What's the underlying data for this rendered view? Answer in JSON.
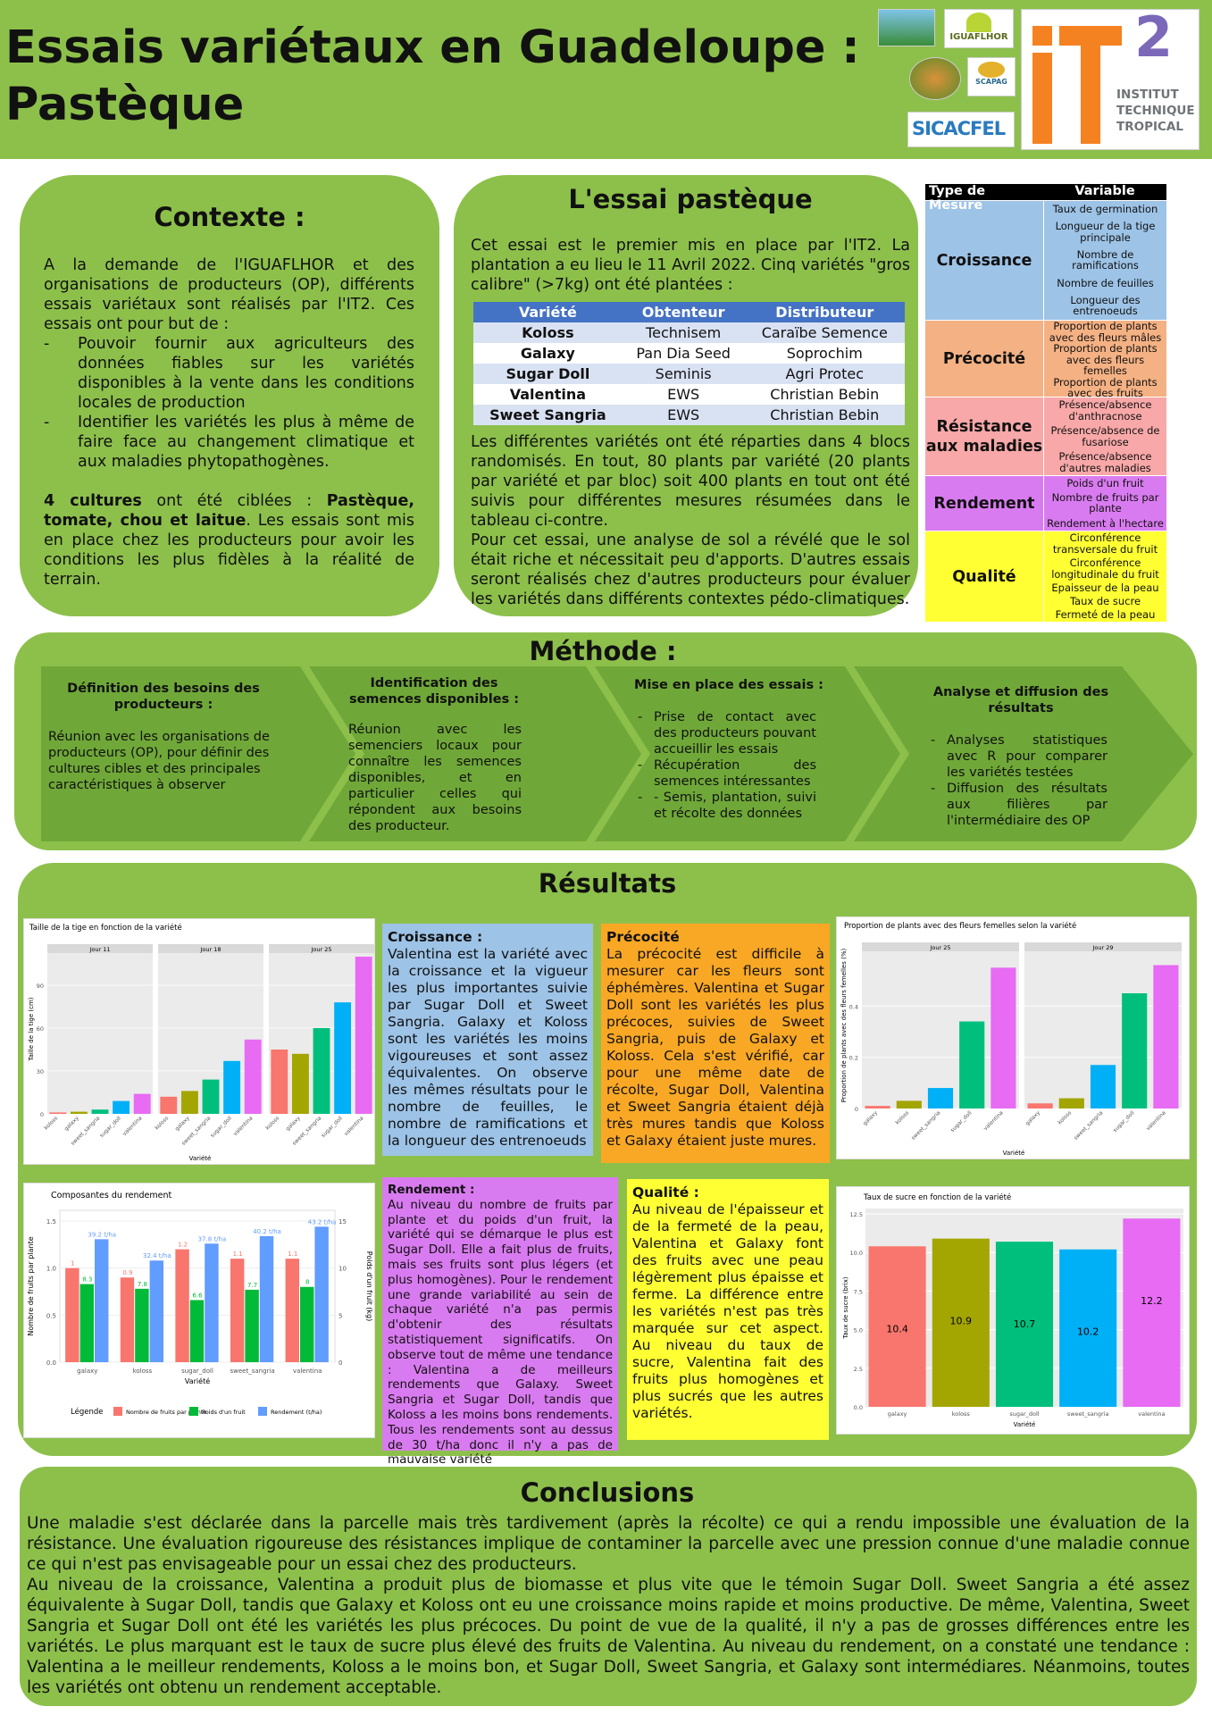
{
  "header": {
    "title_line1": "Essais variétaux en Guadeloupe :",
    "title_line2": "Pastèque",
    "logos": {
      "it2_number": "2",
      "it2_name_l1": "INSTITUT",
      "it2_name_l2": "TECHNIQUE",
      "it2_name_l3": "TROPICAL",
      "iguaflhor": "IGUAFLHOR",
      "scapag": "SCAPAG",
      "sicacfel": "SICACFEL"
    }
  },
  "contexte": {
    "title": "Contexte :",
    "p1": "A la demande de l'IGUAFLHOR et des organisations de producteurs (OP), différents essais variétaux sont réalisés par l'IT2. Ces essais ont pour but de :",
    "bullets": [
      "Pouvoir fournir aux agriculteurs des données fiables sur les variétés disponibles à la vente dans les conditions locales de production",
      "Identifier les variétés les plus à même de faire face au changement climatique et aux maladies phytopathogènes."
    ],
    "p2_bold": "4 cultures",
    "p2_mid": " ont été ciblées : ",
    "p2_bold2": "Pastèque, tomate, chou et laitue",
    "p2_end": ". Les essais sont mis en place chez les producteurs pour avoir les conditions les plus fidèles à la réalité de terrain."
  },
  "essai": {
    "title": "L'essai pastèque",
    "p1": "Cet essai est le premier mis en place par l'IT2. La plantation a eu lieu le 11 Avril 2022. Cinq variétés \"gros calibre\" (>7kg) ont été plantées :",
    "table_headers": [
      "Variété",
      "Obtenteur",
      "Distributeur"
    ],
    "rows": [
      [
        "Koloss",
        "Technisem",
        "Caraïbe Semence"
      ],
      [
        "Galaxy",
        "Pan Dia Seed",
        "Soprochim"
      ],
      [
        "Sugar Doll",
        "Seminis",
        "Agri Protec"
      ],
      [
        "Valentina",
        "EWS",
        "Christian Bebin"
      ],
      [
        "Sweet Sangria",
        "EWS",
        "Christian Bebin"
      ]
    ],
    "p2": "Les différentes variétés ont été réparties dans 4 blocs randomisés. En tout, 80 plants par variété (20 plants par variété et par bloc) soit 400 plants en tout ont été suivis pour différentes mesures résumées dans le tableau ci-contre.",
    "p3": "Pour cet essai, une analyse de sol a révélé que le sol était riche et nécessitait peu d'apports. D'autres essais seront réalisés chez d'autres producteurs pour évaluer les variétés dans différents contextes pédo-climatiques."
  },
  "mesures": {
    "headers": [
      "Type de Mesure",
      "Variable"
    ],
    "groups": [
      {
        "type": "Croissance",
        "color": "#9dc3e6",
        "vars": [
          "Taux de germination",
          "Longueur de la tige principale",
          "Nombre de ramifications",
          "Nombre de feuilles",
          "Longueur des entrenoeuds"
        ]
      },
      {
        "type": "Précocité",
        "color": "#f4b183",
        "vars": [
          "Proportion de plants avec des fleurs mâles",
          "Proportion de plants avec des fleurs femelles",
          "Proportion de plants avec des fruits"
        ]
      },
      {
        "type": "Résistance aux maladies",
        "color": "#f8a8a8",
        "vars": [
          "Présence/absence d'anthracnose",
          "Présence/absence de fusariose",
          "Présence/absence d'autres maladies"
        ]
      },
      {
        "type": "Rendement",
        "color": "#d97bf0",
        "vars": [
          "Poids d'un fruit",
          "Nombre de fruits par plante",
          "Rendement à l'hectare"
        ]
      },
      {
        "type": "Qualité",
        "color": "#ffff33",
        "vars": [
          "Circonférence transversale du fruit",
          "Circonférence longitudinale du fruit",
          "Epaisseur de la peau",
          "Taux de sucre",
          "Fermeté de la peau"
        ]
      }
    ]
  },
  "methode": {
    "title": "Méthode :",
    "steps": [
      {
        "title": "Définition des besoins des producteurs :",
        "text": "Réunion avec les organisations de producteurs (OP), pour définir des cultures cibles et des principales caractéristiques à observer"
      },
      {
        "title": "Identification des semences disponibles :",
        "text": "Réunion avec les semenciers locaux pour connaître les semences disponibles, et en particulier celles qui répondent aux besoins des producteur."
      },
      {
        "title": "Mise en place des essais :",
        "items": [
          "Prise de contact avec des producteurs pouvant accueillir les essais",
          "Récupération des semences intéressantes",
          "- Semis, plantation, suivi et récolte des données"
        ]
      },
      {
        "title": "Analyse et diffusion des résultats",
        "items": [
          "Analyses statistiques avec R pour comparer les variétés testées",
          "Diffusion des résultats aux filières par l'intermédiaire des OP"
        ]
      }
    ]
  },
  "resultats": {
    "title": "Résultats",
    "croissance": {
      "title": "Croissance :",
      "text": "Valentina est la variété avec la croissance et la vigueur les plus importantes suivie par Sugar Doll et Sweet Sangria. Galaxy et Koloss sont les variétés les moins vigoureuses et sont assez équivalentes. On observe les mêmes résultats pour le nombre de feuilles, le nombre de ramifications et la longueur des entrenoeuds"
    },
    "precocite": {
      "title": "Précocité",
      "text": "La précocité est difficile à mesurer car les fleurs sont éphémères. Valentina et Sugar Doll sont les variétés les plus précoces, suivies de Sweet Sangria, puis de Galaxy et Koloss. Cela s'est vérifié, car pour une même date de récolte, Sugar Doll, Valentina et Sweet Sangria étaient déjà très mures tandis que Koloss et Galaxy étaient juste mures."
    },
    "rendement": {
      "title": "Rendement :",
      "text": "Au niveau du nombre de fruits par plante et du poids d'un fruit, la variété qui se démarque le plus est Sugar Doll. Elle a fait plus de fruits, mais ses fruits sont plus légers (et plus homogènes). Pour le rendement une grande variabilité au sein de chaque variété n'a pas permis d'obtenir des résultats statistiquement significatifs. On observe tout de même une tendance : Valentina a de meilleurs rendements que Galaxy. Sweet Sangria et Sugar Doll, tandis que Koloss a les moins bons rendements. Tous les rendements sont au dessus de 30 t/ha donc il n'y a pas de mauvaise variété"
    },
    "qualite": {
      "title": "Qualité :",
      "text": "Au niveau de l'épaisseur et de la fermeté de la peau, Valentina et Galaxy font des fruits avec une peau légèrement plus épaisse et ferme. La différence entre les variétés n'est pas très marquée sur cet aspect. Au niveau du taux de sucre, Valentina fait des fruits plus homogènes et plus sucrés que les autres variétés."
    }
  },
  "conclusions": {
    "title": "Conclusions",
    "p1": "Une maladie s'est déclarée dans la parcelle mais très tardivement (après la récolte) ce qui a rendu impossible une évaluation de la résistance. Une évaluation rigoureuse des résistances implique de contaminer la parcelle avec une pression connue d'une maladie connue ce qui n'est pas envisageable pour un essai chez des producteurs.",
    "p2": "Au niveau de la croissance, Valentina a produit plus de biomasse et plus vite que le témoin Sugar Doll. Sweet Sangria a été assez équivalente à Sugar Doll, tandis que Galaxy et Koloss ont eu une croissance moins rapide et moins productive. De même, Valentina, Sweet Sangria et Sugar Doll ont été les variétés les plus précoces. Du point de vue de la qualité, il n'y a pas de grosses différences entre les variétés. Le plus marquant est le taux de sucre plus élevé des fruits de Valentina. Au niveau du rendement, on a constaté une tendance : Valentina a le meilleur rendements, Koloss a le moins bon, et Sugar Doll, Sweet Sangria, et Galaxy sont intermédiares. Néanmoins, toutes les variétés ont obtenu un rendement acceptable."
  },
  "chart_data": [
    {
      "type": "bar",
      "title": "Taille de la tige en fonction de la variété",
      "xlabel": "Variété",
      "ylabel": "Taille de la tige (cm)",
      "ylim": [
        0,
        110
      ],
      "yticks": [
        0,
        30,
        60,
        90
      ],
      "panels": [
        "Jour 11",
        "Jour 18",
        "Jour 25"
      ],
      "categories": [
        "koloss",
        "galaxy",
        "sweet_sangria",
        "sugar_doll",
        "valentina"
      ],
      "values": [
        [
          1,
          1.5,
          3,
          9,
          14
        ],
        [
          12,
          16,
          24,
          37,
          52
        ],
        [
          45,
          42,
          60,
          78,
          110
        ]
      ],
      "colors": [
        "#f8766d",
        "#a3a500",
        "#00bf7d",
        "#00b0f6",
        "#e76bf3"
      ]
    },
    {
      "type": "bar",
      "title": "Proportion de plants avec des fleurs femelles selon la variété",
      "xlabel": "Variété",
      "ylabel": "Proportion de plants avec des fleurs femelles (%)",
      "ylim": [
        0,
        0.6
      ],
      "yticks": [
        0.0,
        0.2,
        0.4
      ],
      "panels": [
        "Jour 25",
        "Jour 29"
      ],
      "categories": [
        "galaxy",
        "koloss",
        "sweet_sangria",
        "sugar_doll",
        "valentina"
      ],
      "values": [
        [
          0.01,
          0.03,
          0.08,
          0.34,
          0.55
        ],
        [
          0.02,
          0.04,
          0.17,
          0.45,
          0.56
        ]
      ],
      "colors": [
        "#f8766d",
        "#a3a500",
        "#00b0f6",
        "#00bf7d",
        "#e76bf3"
      ]
    },
    {
      "type": "bar",
      "title": "Composantes du rendement",
      "xlabel": "Variété",
      "ylabel": "Nombre de fruits par plante",
      "ylabel2": "Poids d'un fruit (kg)",
      "ylim": [
        0,
        1.5
      ],
      "yticks": [
        0.0,
        0.5,
        1.0,
        1.5
      ],
      "ylim2": [
        0,
        15
      ],
      "yticks2": [
        0,
        5,
        10,
        15
      ],
      "categories": [
        "galaxy",
        "koloss",
        "sugar_doll",
        "sweet_sangria",
        "valentina"
      ],
      "series": [
        {
          "name": "Nombre de fruits par plante",
          "values": [
            1.0,
            0.9,
            1.2,
            1.1,
            1.1
          ],
          "labels": [
            "1",
            "0.9",
            "1.2",
            "1.1",
            "1.1"
          ],
          "color": "#f8766d"
        },
        {
          "name": "Poids d'un fruit",
          "values": [
            8.3,
            7.8,
            6.6,
            7.7,
            8.0
          ],
          "labels": [
            "8.3",
            "7.8",
            "6.6",
            "7.7",
            "8"
          ],
          "color": "#00ba38"
        },
        {
          "name": "Rendement (t/ha)",
          "values": [
            39.2,
            32.4,
            37.8,
            40.2,
            43.2
          ],
          "labels": [
            "39.2 t/ha",
            "32.4 t/ha",
            "37.8 t/ha",
            "40.2 t/ha",
            "43.2 t/ha"
          ],
          "color": "#619cff"
        }
      ],
      "legend_title": "Légende"
    },
    {
      "type": "bar",
      "title": "Taux de sucre en fonction de la variété",
      "xlabel": "Variété",
      "ylabel": "Taux de sucre (brix)",
      "ylim": [
        0,
        12.5
      ],
      "yticks": [
        0.0,
        2.5,
        5.0,
        7.5,
        10.0,
        12.5
      ],
      "categories": [
        "galaxy",
        "koloss",
        "sugar_doll",
        "sweet_sangria",
        "valentina"
      ],
      "values": [
        10.4,
        10.9,
        10.7,
        10.2,
        12.2
      ],
      "colors": [
        "#f8766d",
        "#a3a500",
        "#00bf7d",
        "#00b0f6",
        "#e76bf3"
      ]
    }
  ]
}
